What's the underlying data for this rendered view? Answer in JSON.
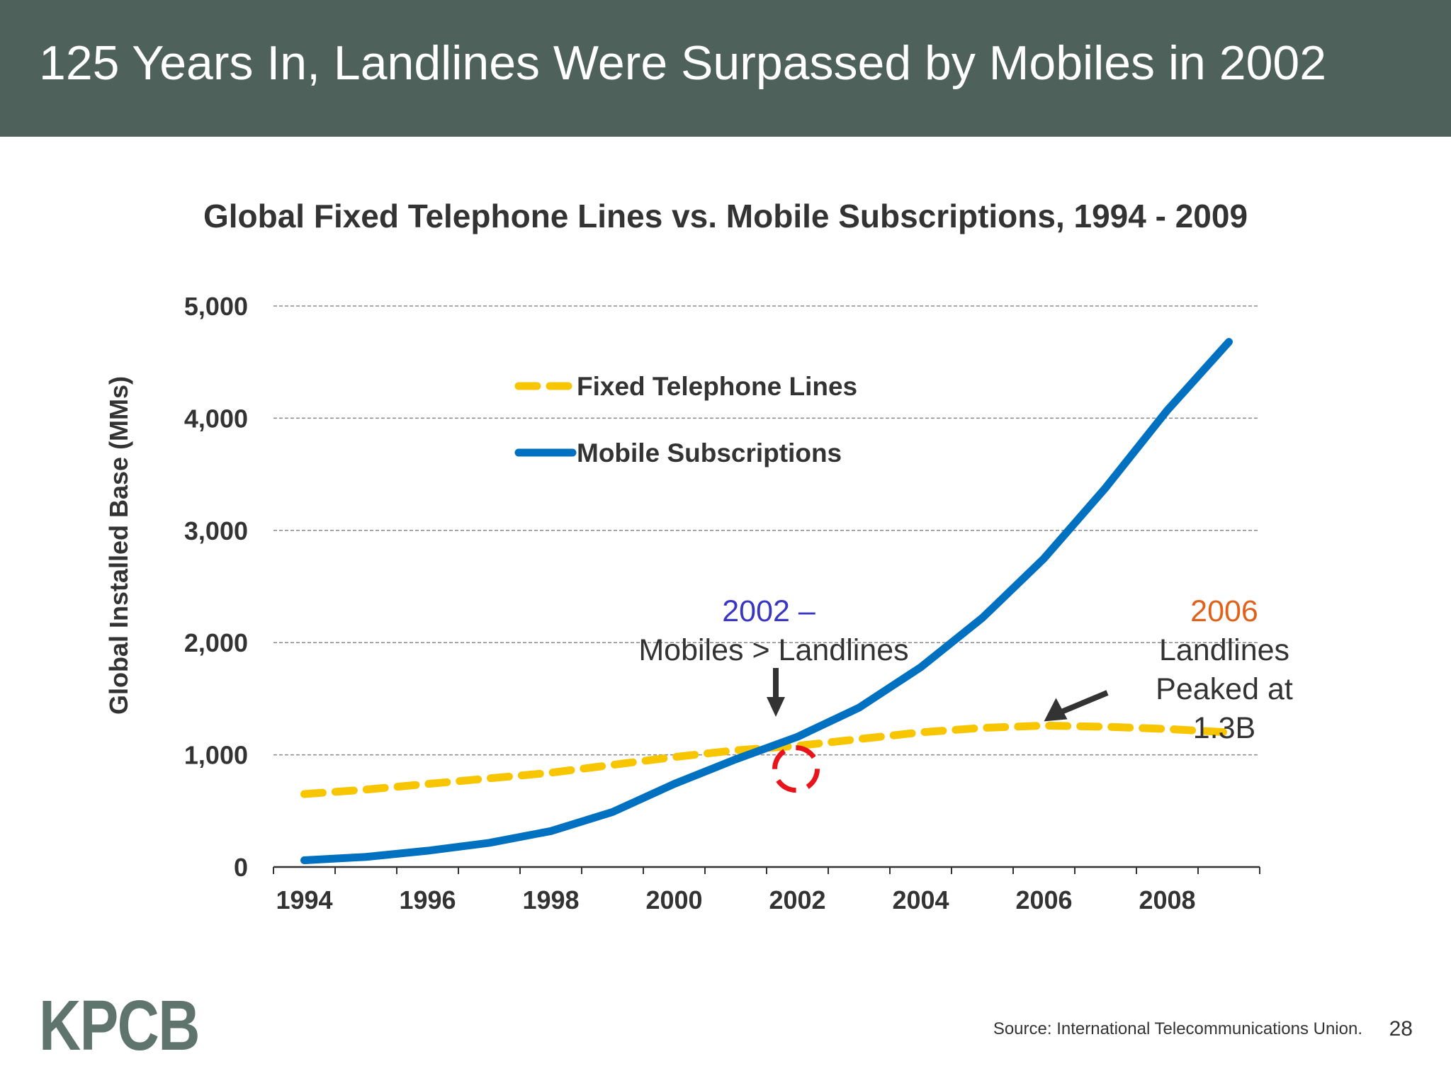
{
  "slide": {
    "title": "125 Years In, Landlines Were Surpassed by Mobiles in 2002",
    "logo": "KPCB",
    "source": "Source: International Telecommunications Union.",
    "page_number": "28"
  },
  "colors": {
    "header_bg": "#4f615b",
    "fixed_series": "#f7c600",
    "mobile_series": "#0070c0",
    "crossover_circle": "#e8141c",
    "annotation_2002_year": "#3a36c4",
    "annotation_2006_year": "#e0621a",
    "arrow": "#333333"
  },
  "chart_data": {
    "type": "line",
    "title": "Global Fixed Telephone Lines vs. Mobile Subscriptions, 1994 - 2009",
    "xlabel": "",
    "ylabel": "Global Installed Base (MMs)",
    "x": [
      1994,
      1995,
      1996,
      1997,
      1998,
      1999,
      2000,
      2001,
      2002,
      2003,
      2004,
      2005,
      2006,
      2007,
      2008,
      2009
    ],
    "xlim": [
      1993.5,
      2009.5
    ],
    "ylim": [
      0,
      5000
    ],
    "yticks": [
      0,
      1000,
      2000,
      3000,
      4000,
      5000
    ],
    "ytick_labels": [
      "0",
      "1,000",
      "2,000",
      "3,000",
      "4,000",
      "5,000"
    ],
    "xticks": [
      1994,
      1996,
      1998,
      2000,
      2002,
      2004,
      2006,
      2008
    ],
    "xtick_labels": [
      "1994",
      "1996",
      "1998",
      "2000",
      "2002",
      "2004",
      "2006",
      "2008"
    ],
    "grid": "horizontal dashed",
    "legend_position": "upper-left",
    "series": [
      {
        "name": "Fixed Telephone Lines",
        "style": "dashed",
        "color_key": "fixed_series",
        "values": [
          650,
          690,
          740,
          790,
          840,
          910,
          980,
          1040,
          1080,
          1140,
          1200,
          1240,
          1260,
          1250,
          1230,
          1200
        ]
      },
      {
        "name": "Mobile Subscriptions",
        "style": "solid",
        "color_key": "mobile_series",
        "values": [
          60,
          90,
          145,
          215,
          320,
          490,
          740,
          960,
          1160,
          1420,
          1780,
          2220,
          2750,
          3380,
          4070,
          4680
        ]
      }
    ],
    "annotations": [
      {
        "year_text": "2002 –",
        "text": "Mobiles > Landlines",
        "x": 2002,
        "y": 1000
      },
      {
        "year_text": "2006",
        "lines": [
          "Landlines",
          "Peaked at",
          "1.3B"
        ],
        "x": 2006,
        "y": 1260
      }
    ]
  }
}
